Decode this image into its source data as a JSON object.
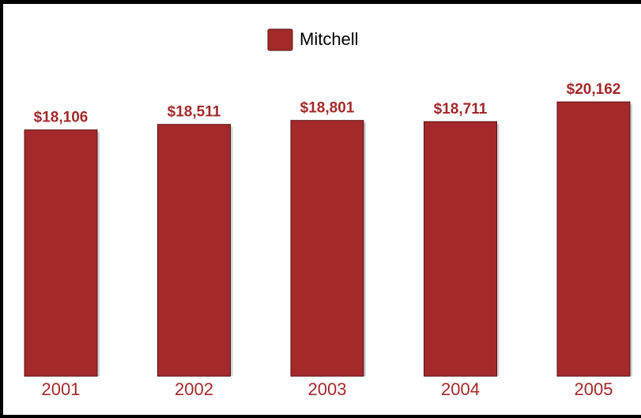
{
  "chart_data": {
    "type": "bar",
    "categories": [
      "2001",
      "2002",
      "2003",
      "2004",
      "2005"
    ],
    "series": [
      {
        "name": "Mitchell",
        "values": [
          18106,
          18511,
          18801,
          18711,
          20162
        ],
        "labels": [
          "$18,106",
          "$18,511",
          "$18,801",
          "$18,711",
          "$20,162"
        ]
      }
    ],
    "title": "",
    "xlabel": "",
    "ylabel": "",
    "legend_position": "top-center",
    "grid": false,
    "colors": {
      "bar": "#A3292B",
      "bar_edge": "#5A1315",
      "label": "#A3292B",
      "frame": "#000000"
    }
  }
}
